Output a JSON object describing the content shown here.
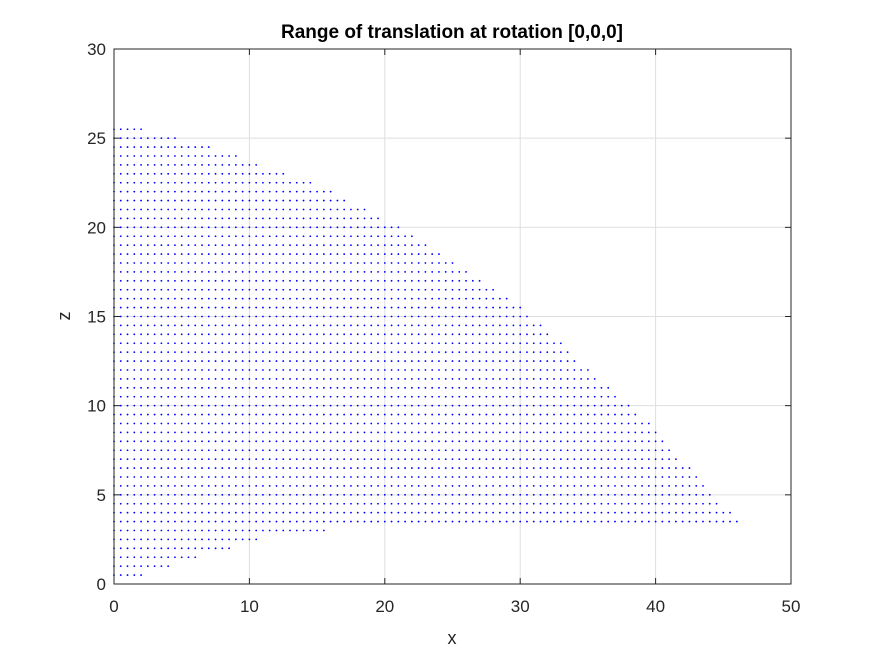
{
  "chart_data": {
    "type": "scatter",
    "title": "Range of translation at rotation [0,0,0]",
    "xlabel": "x",
    "ylabel": "z",
    "xlim": [
      0,
      50
    ],
    "ylim": [
      0,
      30
    ],
    "xticks": [
      0,
      10,
      20,
      30,
      40,
      50
    ],
    "yticks": [
      0,
      5,
      10,
      15,
      20,
      25,
      30
    ],
    "xtick_labels": [
      "0",
      "10",
      "20",
      "30",
      "40",
      "50"
    ],
    "ytick_labels": [
      "0",
      "5",
      "10",
      "15",
      "20",
      "25",
      "30"
    ],
    "grid": true,
    "marker_color": "#0000ff",
    "region": {
      "grid_step": 0.5,
      "x_min": 0,
      "upper_boundary": [
        [
          0,
          25.5
        ],
        [
          2,
          25.5
        ],
        [
          4.5,
          25
        ],
        [
          7,
          24.5
        ],
        [
          9,
          24
        ],
        [
          10.5,
          23.5
        ],
        [
          12.5,
          23
        ],
        [
          14.5,
          22.5
        ],
        [
          16,
          22
        ],
        [
          17,
          21.5
        ],
        [
          18.5,
          21
        ],
        [
          19.5,
          20.5
        ],
        [
          21,
          20
        ],
        [
          22,
          19.5
        ],
        [
          23,
          19
        ],
        [
          24,
          18.5
        ],
        [
          25,
          18
        ],
        [
          26,
          17.5
        ],
        [
          27,
          17
        ],
        [
          28,
          16.5
        ],
        [
          29,
          16
        ],
        [
          30,
          15.5
        ],
        [
          30.5,
          15
        ],
        [
          31.5,
          14.5
        ],
        [
          32,
          14
        ],
        [
          33,
          13.5
        ],
        [
          33.5,
          13
        ],
        [
          34,
          12.5
        ],
        [
          35,
          12
        ],
        [
          35.5,
          11.5
        ],
        [
          36.5,
          11
        ],
        [
          37,
          10.5
        ],
        [
          38,
          10
        ],
        [
          38.5,
          9.5
        ],
        [
          39.5,
          9
        ],
        [
          40,
          8.5
        ],
        [
          40.5,
          8
        ],
        [
          41,
          7.5
        ],
        [
          41.5,
          7
        ],
        [
          42.5,
          6.5
        ],
        [
          43,
          6
        ],
        [
          43.5,
          5.5
        ],
        [
          44,
          5
        ],
        [
          44.5,
          4.5
        ],
        [
          45.5,
          4
        ],
        [
          46,
          3.5
        ]
      ],
      "lower_boundary": [
        [
          0,
          0.5
        ],
        [
          2,
          0.5
        ],
        [
          4,
          1
        ],
        [
          6,
          1.5
        ],
        [
          8.5,
          2
        ],
        [
          10.5,
          2.5
        ],
        [
          13,
          3
        ],
        [
          15.5,
          3
        ],
        [
          16,
          3.5
        ],
        [
          46,
          3.5
        ]
      ]
    }
  }
}
